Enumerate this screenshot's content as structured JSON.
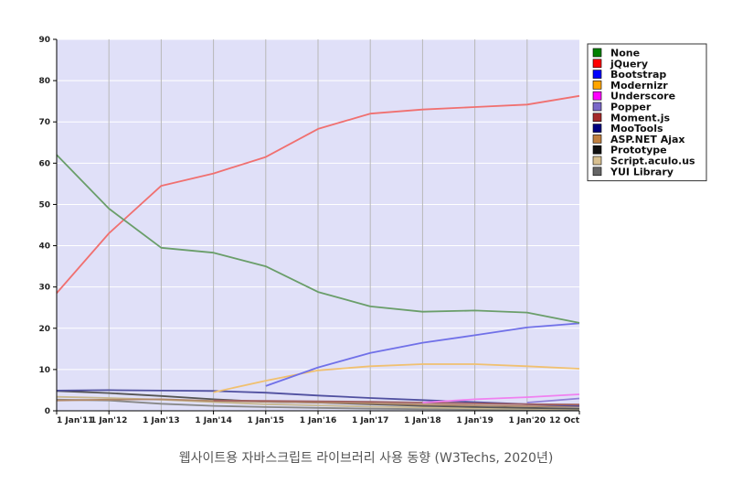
{
  "caption": "웹사이트용 자바스크립트 라이브러리 사용 동향 (W3Techs, 2020년)",
  "chart_data": {
    "type": "line",
    "categories": [
      "1 Jan'11",
      "1 Jan'12",
      "1 Jan'13",
      "1 Jan'14",
      "1 Jan'15",
      "1 Jan'16",
      "1 Jan'17",
      "1 Jan'18",
      "1 Jan'19",
      "1 Jan'20",
      "12 Oct"
    ],
    "ylim": [
      0,
      90
    ],
    "yticks": [
      0,
      10,
      20,
      30,
      40,
      50,
      60,
      70,
      80,
      90
    ],
    "grid": true,
    "legend_position": "right",
    "series": [
      {
        "name": "None",
        "color": "#008000",
        "line_color": "#6a9e6a",
        "values": [
          62,
          49,
          39.5,
          38.3,
          35,
          28.8,
          25.3,
          24,
          24.3,
          23.8,
          21.3
        ]
      },
      {
        "name": "jQuery",
        "color": "#ff0000",
        "line_color": "#f07070",
        "values": [
          28.5,
          43,
          54.5,
          57.5,
          61.5,
          68.3,
          72,
          73,
          73.6,
          74.2,
          76.3
        ]
      },
      {
        "name": "Bootstrap",
        "color": "#0000ff",
        "line_color": "#7070e8",
        "values": [
          null,
          null,
          null,
          null,
          6,
          10.5,
          14,
          16.5,
          18.3,
          20.2,
          21.2
        ]
      },
      {
        "name": "Modernizr",
        "color": "#ffa500",
        "line_color": "#f0c070",
        "values": [
          null,
          null,
          null,
          4.5,
          7.3,
          9.8,
          10.8,
          11.3,
          11.3,
          10.8,
          10.2
        ]
      },
      {
        "name": "Underscore",
        "color": "#ff00ff",
        "line_color": "#f080f0",
        "values": [
          null,
          null,
          null,
          null,
          null,
          null,
          null,
          2,
          2.8,
          3.3,
          4
        ]
      },
      {
        "name": "Popper",
        "color": "#7a68c8",
        "line_color": "#9080d8",
        "values": [
          null,
          null,
          null,
          null,
          null,
          null,
          null,
          null,
          null,
          2,
          3
        ]
      },
      {
        "name": "Moment.js",
        "color": "#a52a2a",
        "line_color": "#a06060",
        "values": [
          null,
          null,
          null,
          2.5,
          2.4,
          2.3,
          2.2,
          2,
          1.8,
          1.6,
          1.5
        ]
      },
      {
        "name": "MooTools",
        "color": "#000080",
        "line_color": "#5050a0",
        "values": [
          4.9,
          5,
          4.9,
          4.8,
          4.4,
          3.7,
          3.1,
          2.6,
          2.1,
          1.6,
          1.2
        ]
      },
      {
        "name": "ASP.NET Ajax",
        "color": "#c08040",
        "line_color": "#b08868",
        "values": [
          2.5,
          2.7,
          2.8,
          2.4,
          2.2,
          2,
          1.8,
          1.5,
          1.3,
          1.1,
          1
        ]
      },
      {
        "name": "Prototype",
        "color": "#111111",
        "line_color": "#555555",
        "values": [
          4.8,
          4.3,
          3.6,
          2.8,
          2.2,
          2,
          1.6,
          1.2,
          0.9,
          0.7,
          0.5
        ]
      },
      {
        "name": "Script.aculo.us",
        "color": "#d8c090",
        "line_color": "#c8b890",
        "values": [
          3.4,
          3.1,
          2.7,
          2.1,
          1.6,
          1.3,
          1,
          0.8,
          0.6,
          0.5,
          0.4
        ]
      },
      {
        "name": "YUI Library",
        "color": "#666666",
        "line_color": "#888888",
        "values": [
          2.7,
          2.5,
          1.7,
          1.2,
          0.9,
          0.7,
          0.5,
          0.4,
          0.3,
          0.3,
          0.2
        ]
      }
    ]
  }
}
